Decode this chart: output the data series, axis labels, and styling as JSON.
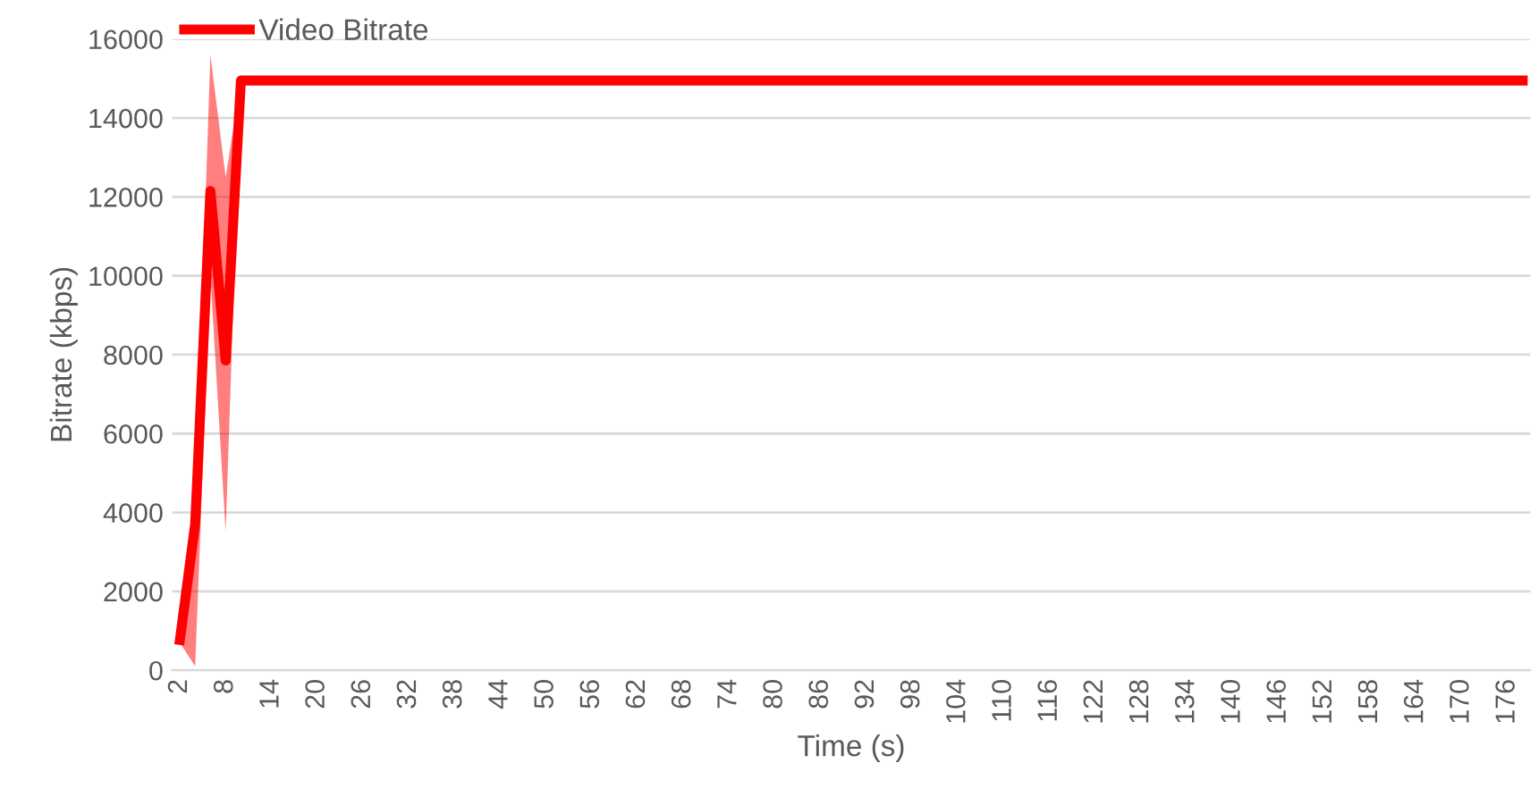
{
  "chart_data": {
    "type": "line",
    "xlabel": "Time (s)",
    "ylabel": "Bitrate (kbps)",
    "categories": [
      "2",
      null,
      null,
      "8",
      null,
      null,
      "14",
      null,
      null,
      "20",
      null,
      null,
      "26",
      null,
      null,
      "32",
      null,
      null,
      "38",
      null,
      null,
      "44",
      null,
      null,
      "50",
      null,
      null,
      "56",
      null,
      null,
      "62",
      null,
      null,
      "68",
      null,
      null,
      "74",
      null,
      null,
      "80",
      null,
      null,
      "86",
      null,
      null,
      "92",
      null,
      null,
      "98",
      null,
      null,
      "104",
      null,
      null,
      "110",
      null,
      null,
      "116",
      null,
      null,
      "122",
      null,
      null,
      "128",
      null,
      null,
      "134",
      null,
      null,
      "140",
      null,
      null,
      "146",
      null,
      null,
      "152",
      null,
      null,
      "158",
      null,
      null,
      "164",
      null,
      null,
      "170",
      null,
      null,
      "176",
      null
    ],
    "series": [
      {
        "name": "Video Bitrate",
        "color": "#ff0000",
        "values": [
          770,
          3700,
          12150,
          7850,
          14950,
          14950,
          14950,
          14950,
          14950,
          14950,
          14950,
          14950,
          14950,
          14950,
          14950,
          14950,
          14950,
          14950,
          14950,
          14950,
          14950,
          14950,
          14950,
          14950,
          14950,
          14950,
          14950,
          14950,
          14950,
          14950,
          14950,
          14950,
          14950,
          14950,
          14950,
          14950,
          14950,
          14950,
          14950,
          14950,
          14950,
          14950,
          14950,
          14950,
          14950,
          14950,
          14950,
          14950,
          14950,
          14950,
          14950,
          14950,
          14950,
          14950,
          14950,
          14950,
          14950,
          14950,
          14950,
          14950,
          14950,
          14950,
          14950,
          14950,
          14950,
          14950,
          14950,
          14950,
          14950,
          14950,
          14950,
          14950,
          14950,
          14950,
          14950,
          14950,
          14950,
          14950,
          14950,
          14950,
          14950,
          14950,
          14950,
          14950,
          14950,
          14950,
          14950,
          14950,
          14950
        ],
        "lower": [
          700,
          100,
          10000,
          3500,
          14950,
          14950,
          14950,
          14950,
          14950,
          14950,
          14950,
          14950,
          14950,
          14950,
          14950,
          14950,
          14950,
          14950,
          14950,
          14950,
          14950,
          14950,
          14950,
          14950,
          14950,
          14950,
          14950,
          14950,
          14950,
          14950,
          14950,
          14950,
          14950,
          14950,
          14950,
          14950,
          14950,
          14950,
          14950,
          14950,
          14950,
          14950,
          14950,
          14950,
          14950,
          14950,
          14950,
          14950,
          14950,
          14950,
          14950,
          14950,
          14950,
          14950,
          14950,
          14950,
          14950,
          14950,
          14950,
          14950,
          14950,
          14950,
          14950,
          14950,
          14950,
          14950,
          14950,
          14950,
          14950,
          14950,
          14950,
          14950,
          14950,
          14950,
          14950,
          14950,
          14950,
          14950,
          14950,
          14950,
          14950,
          14950,
          14950,
          14950,
          14950,
          14950,
          14950,
          14950,
          14950
        ],
        "upper": [
          850,
          4200,
          15600,
          12500,
          14950,
          14950,
          14950,
          14950,
          14950,
          14950,
          14950,
          14950,
          14950,
          14950,
          14950,
          14950,
          14950,
          14950,
          14950,
          14950,
          14950,
          14950,
          14950,
          14950,
          14950,
          14950,
          14950,
          14950,
          14950,
          14950,
          14950,
          14950,
          14950,
          14950,
          14950,
          14950,
          14950,
          14950,
          14950,
          14950,
          14950,
          14950,
          14950,
          14950,
          14950,
          14950,
          14950,
          14950,
          14950,
          14950,
          14950,
          14950,
          14950,
          14950,
          14950,
          14950,
          14950,
          14950,
          14950,
          14950,
          14950,
          14950,
          14950,
          14950,
          14950,
          14950,
          14950,
          14950,
          14950,
          14950,
          14950,
          14950,
          14950,
          14950,
          14950,
          14950,
          14950,
          14950,
          14950,
          14950,
          14950,
          14950,
          14950,
          14950,
          14950,
          14950,
          14950,
          14950,
          14950
        ]
      }
    ],
    "ylim": [
      0,
      16000
    ],
    "yticks": [
      0,
      2000,
      4000,
      6000,
      8000,
      10000,
      12000,
      14000,
      16000
    ],
    "grid": "y",
    "legend": "top left",
    "marker": "none",
    "line_style": "solid"
  }
}
